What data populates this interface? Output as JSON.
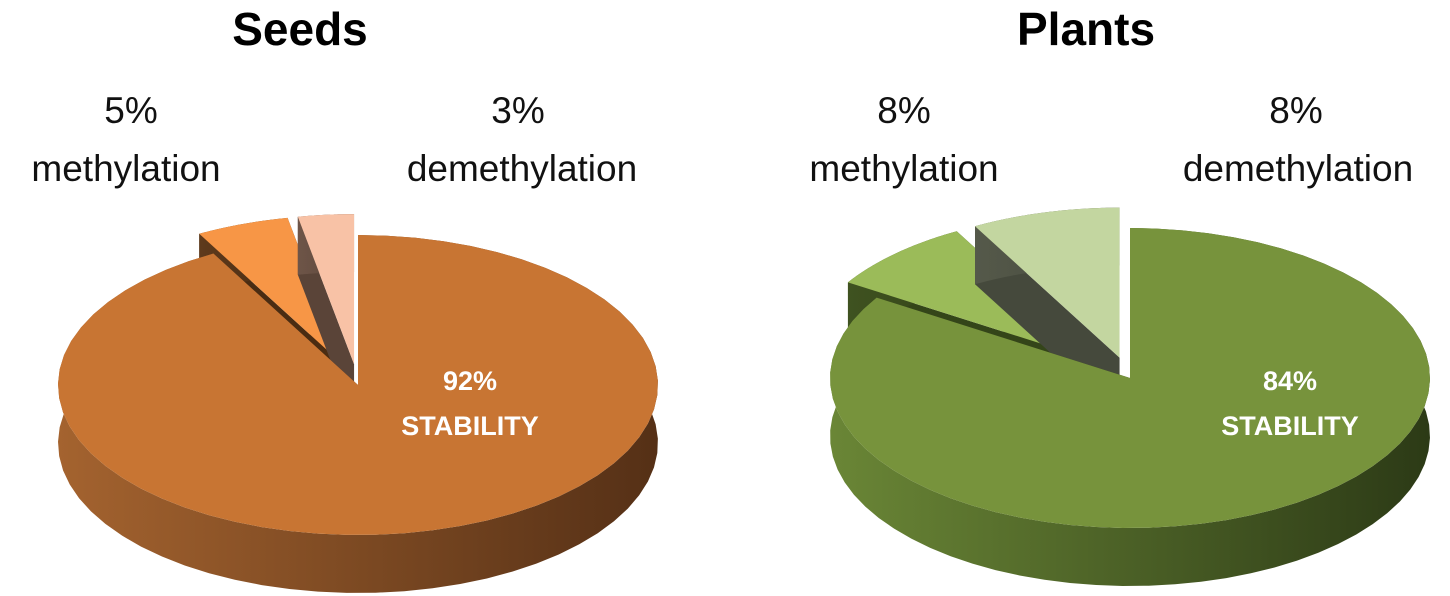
{
  "chart_data": [
    {
      "type": "pie",
      "title": "Seeds",
      "slices": [
        {
          "label": "STABILITY",
          "value": 92,
          "pct_text": "92%",
          "color": "#c87533",
          "side_light": "#a4632f",
          "side_dark": "#553016",
          "exploded": false
        },
        {
          "label": "methylation",
          "value": 5,
          "pct_text": "5%",
          "color": "#f79646",
          "side_light": "#5e3a1c",
          "side_dark": "#4a2c12",
          "exploded": true
        },
        {
          "label": "demethylation",
          "value": 3,
          "pct_text": "3%",
          "color": "#f8c2a6",
          "side_light": "#6e5548",
          "side_dark": "#5a4438",
          "exploded": true
        }
      ]
    },
    {
      "type": "pie",
      "title": "Plants",
      "slices": [
        {
          "label": "STABILITY",
          "value": 84,
          "pct_text": "84%",
          "color": "#77933c",
          "side_light": "#6a8636",
          "side_dark": "#2c3a16",
          "exploded": false
        },
        {
          "label": "methylation",
          "value": 8,
          "pct_text": "8%",
          "color": "#9bbb59",
          "side_light": "#3f5220",
          "side_dark": "#344519",
          "exploded": true
        },
        {
          "label": "demethylation",
          "value": 8,
          "pct_text": "8%",
          "color": "#c3d6a0",
          "side_light": "#55594a",
          "side_dark": "#45493c",
          "exploded": true
        }
      ]
    }
  ]
}
